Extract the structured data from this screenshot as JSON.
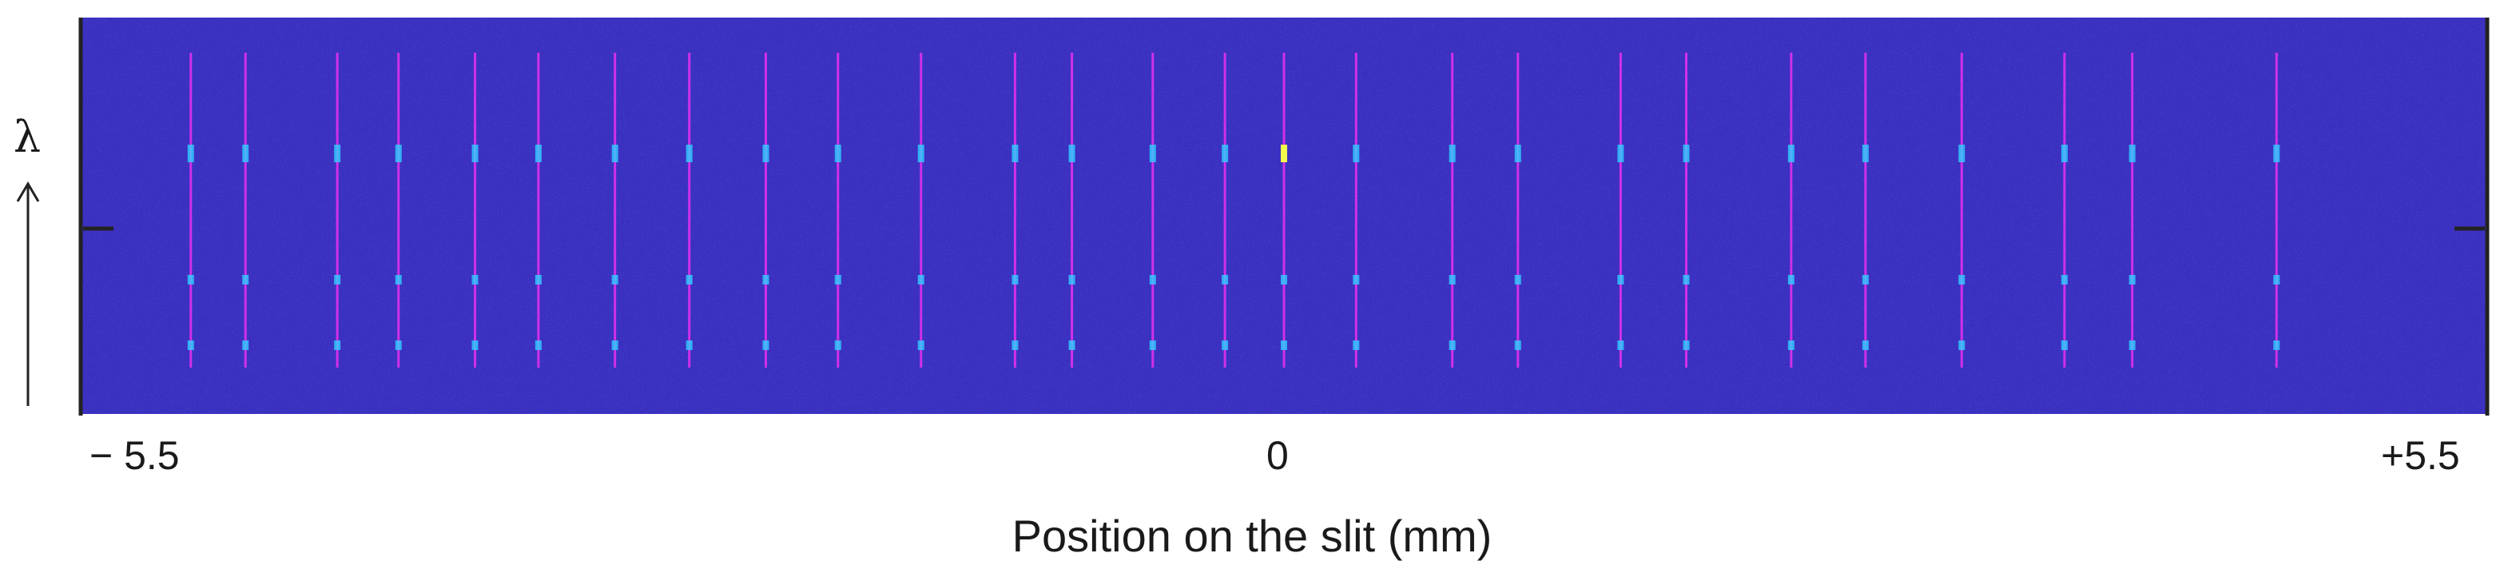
{
  "chart_data": {
    "type": "heatmap",
    "title": "",
    "xlabel": "Position on the slit (mm)",
    "ylabel": "λ",
    "xlim": [
      -5.5,
      5.5
    ],
    "x_tick_labels": [
      "− 5.5",
      "0",
      "+5.5"
    ],
    "x_ticks": [
      -5.5,
      0,
      5.5
    ],
    "background_color": "#3a2fc0",
    "line_color": "#d030e8",
    "spot_color": "#2fd0ff",
    "bright_spot_color": "#f2ff4a",
    "fiber_positions_mm": [
      -5.0,
      -4.75,
      -4.33,
      -4.05,
      -3.7,
      -3.41,
      -3.06,
      -2.72,
      -2.37,
      -2.04,
      -1.66,
      -1.23,
      -0.97,
      -0.6,
      -0.27,
      0.0,
      0.33,
      0.77,
      1.07,
      1.54,
      1.84,
      2.32,
      2.66,
      3.1,
      3.57,
      3.88,
      4.54
    ],
    "spectral_rows": [
      "upper",
      "middle",
      "lower"
    ],
    "brightest_fiber_mm": 0.0
  }
}
